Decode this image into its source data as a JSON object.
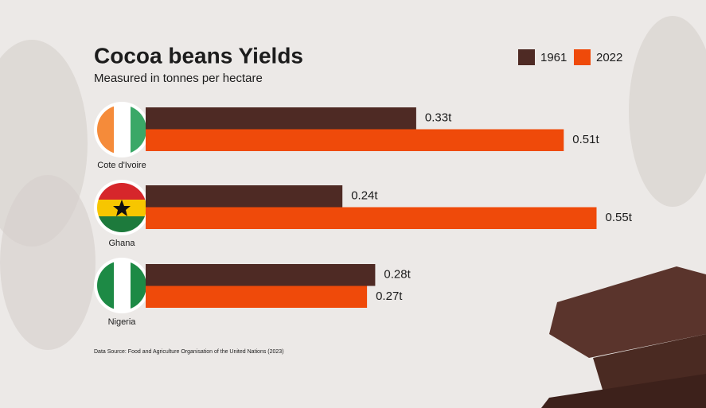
{
  "chart_data": {
    "type": "hbar",
    "title": "Cocoa beans Yields",
    "subtitle": "Measured in tonnes per hectare",
    "source": "Data Source: Food and Agriculture Organisation of the United Nations (2023)",
    "categories": [
      "Cote d'Ivoire",
      "Ghana",
      "Nigeria"
    ],
    "series": [
      {
        "name": "1961",
        "color": "#4e2a24",
        "values": [
          0.33,
          0.24,
          0.28
        ],
        "value_labels": [
          "0.33t",
          "0.24t",
          "0.28t"
        ]
      },
      {
        "name": "2022",
        "color": "#ef4a0a",
        "values": [
          0.51,
          0.55,
          0.27
        ],
        "value_labels": [
          "0.51t",
          "0.55t",
          "0.27t"
        ]
      }
    ],
    "xlim": [
      0,
      0.6
    ],
    "legend": "top-right"
  }
}
